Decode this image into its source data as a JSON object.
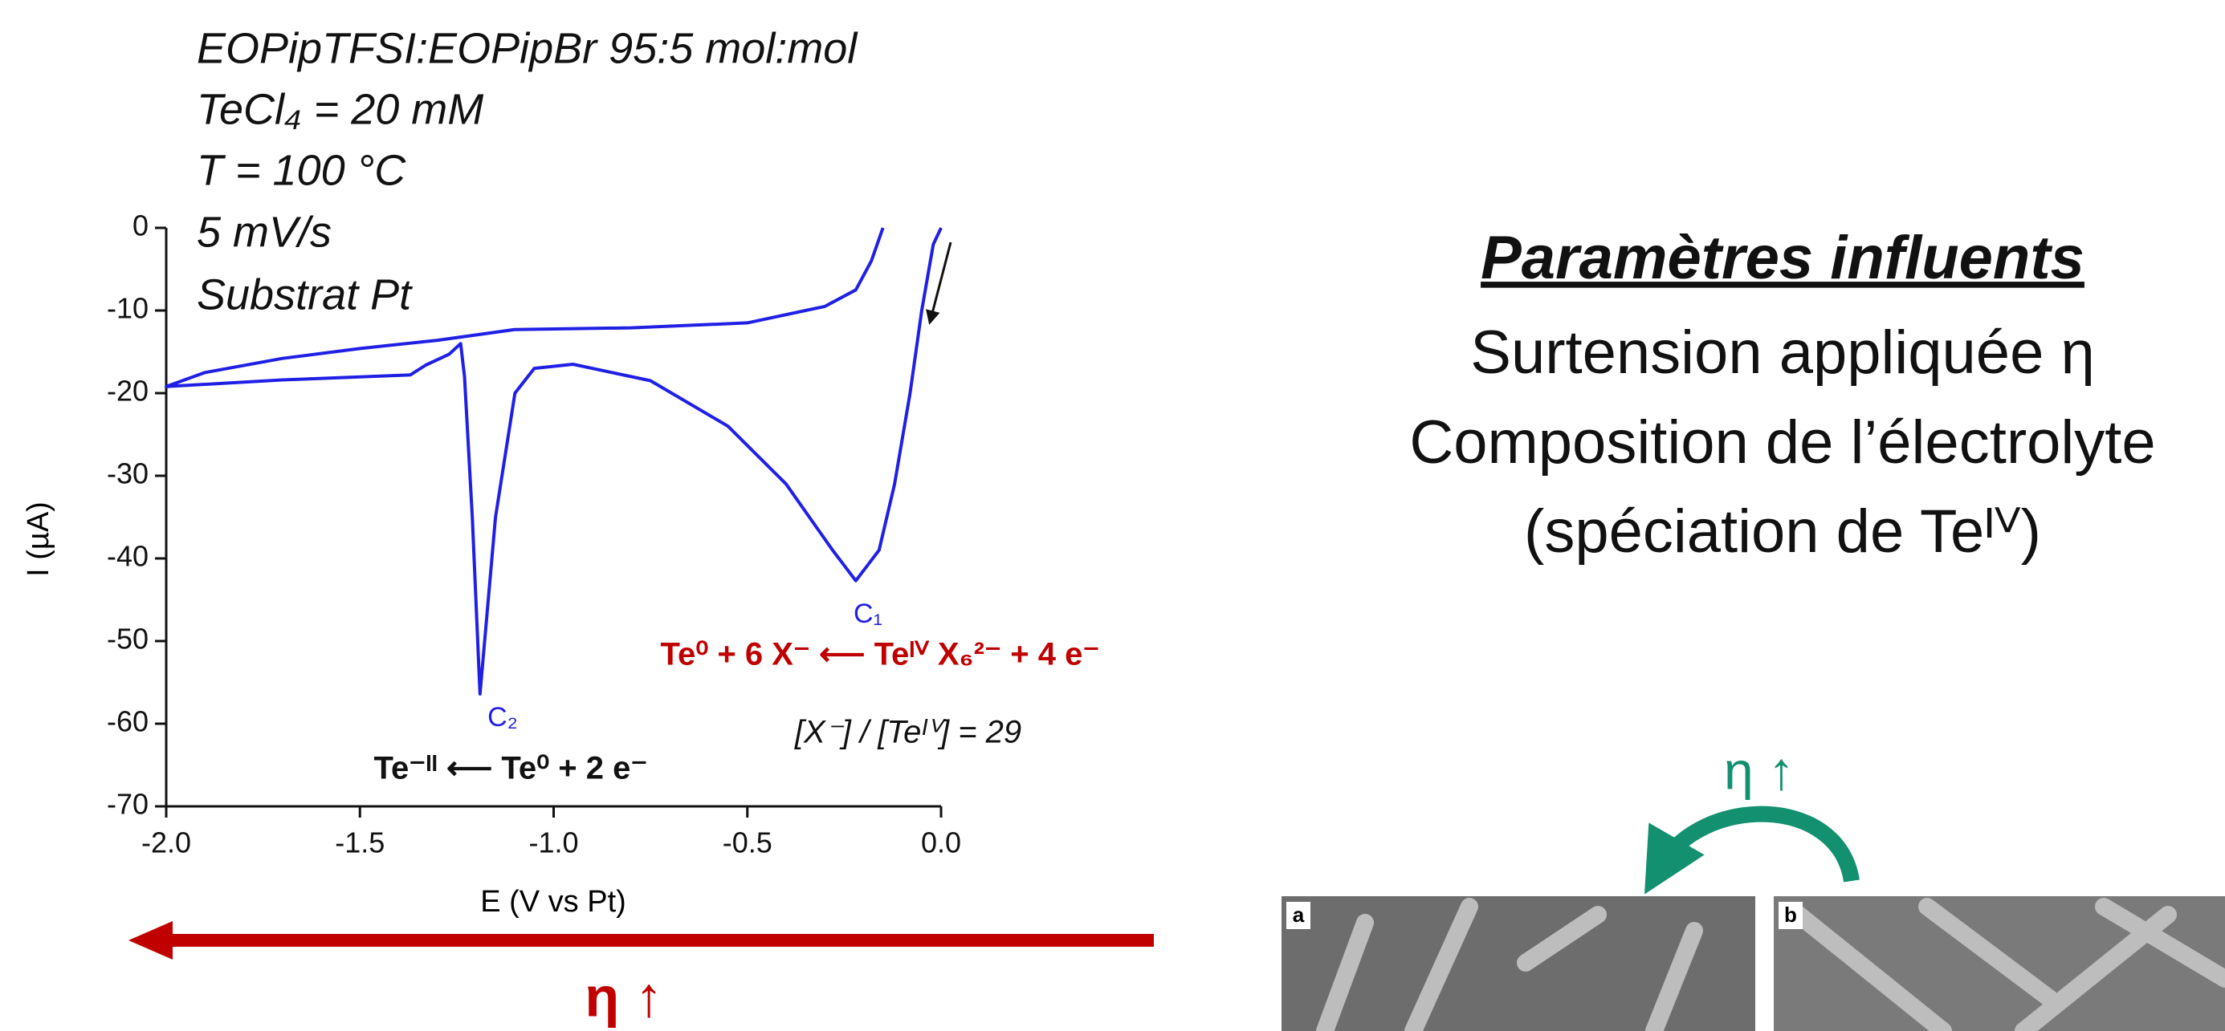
{
  "conditions": [
    "EOPipTFSI:EOPipBr  95:5 mol:mol",
    "TeCl₄ = 20 mM",
    "T = 100 °C",
    "5 mV/s",
    "Substrat Pt"
  ],
  "chart_data": {
    "type": "line",
    "xlabel": "E (V vs Pt)",
    "ylabel": "I (µA)",
    "color": "#1f1fe6",
    "x": [
      0.0,
      -0.02,
      -0.05,
      -0.08,
      -0.12,
      -0.16,
      -0.22,
      -0.28,
      -0.4,
      -0.55,
      -0.75,
      -0.95,
      -1.05,
      -1.1,
      -1.15,
      -1.19,
      -1.21,
      -1.23,
      -1.24,
      -1.27,
      -1.33,
      -1.37,
      -1.7,
      -2.0,
      -1.9,
      -1.7,
      -1.5,
      -1.3,
      -1.1,
      -0.8,
      -0.5,
      -0.3,
      -0.22,
      -0.18,
      -0.15
    ],
    "values": [
      0,
      -2,
      -10,
      -20,
      -31,
      -39,
      -42.7,
      -39,
      -31,
      -24,
      -18.5,
      -16.5,
      -17,
      -20,
      -35,
      -56.4,
      -35,
      -18,
      -14,
      -15.3,
      -16.6,
      -17.8,
      -18.4,
      -19.2,
      -17.5,
      -15.8,
      -14.6,
      -13.6,
      -12.3,
      -12.1,
      -11.5,
      -9.5,
      -7.5,
      -4,
      0
    ],
    "xlim": [
      -2,
      0
    ],
    "ylim": [
      -70,
      0
    ],
    "xticks": [
      {
        "value": -2,
        "label": "-2.0"
      },
      {
        "value": -1.5,
        "label": "-1.5"
      },
      {
        "value": -1,
        "label": "-1.0"
      },
      {
        "value": -0.5,
        "label": "-0.5"
      },
      {
        "value": 0,
        "label": "0.0"
      }
    ],
    "yticks": [
      0,
      -10,
      -20,
      -30,
      -40,
      -50,
      -60,
      -70
    ]
  },
  "annotations": {
    "c1": "C₁",
    "c2": "C₂",
    "reaction_1": "Te⁰ + 6 X⁻ ⟵ Teᴵⱽ X₆²⁻ + 4 e⁻",
    "reaction_2": "Te⁻ᴵᴵ ⟵ Te⁰ + 2 e⁻",
    "ratio": "[X⁻] / [Teᴵⱽ] = 29"
  },
  "eta_label": "η ↑",
  "params": {
    "title": "Paramètres influents",
    "lines": [
      "Surtension appliquée η",
      "Composition de l’électrolyte",
      "(spéciation de Teᴵⱽ)"
    ]
  },
  "images": [
    {
      "label": "a"
    },
    {
      "label": "b"
    }
  ]
}
